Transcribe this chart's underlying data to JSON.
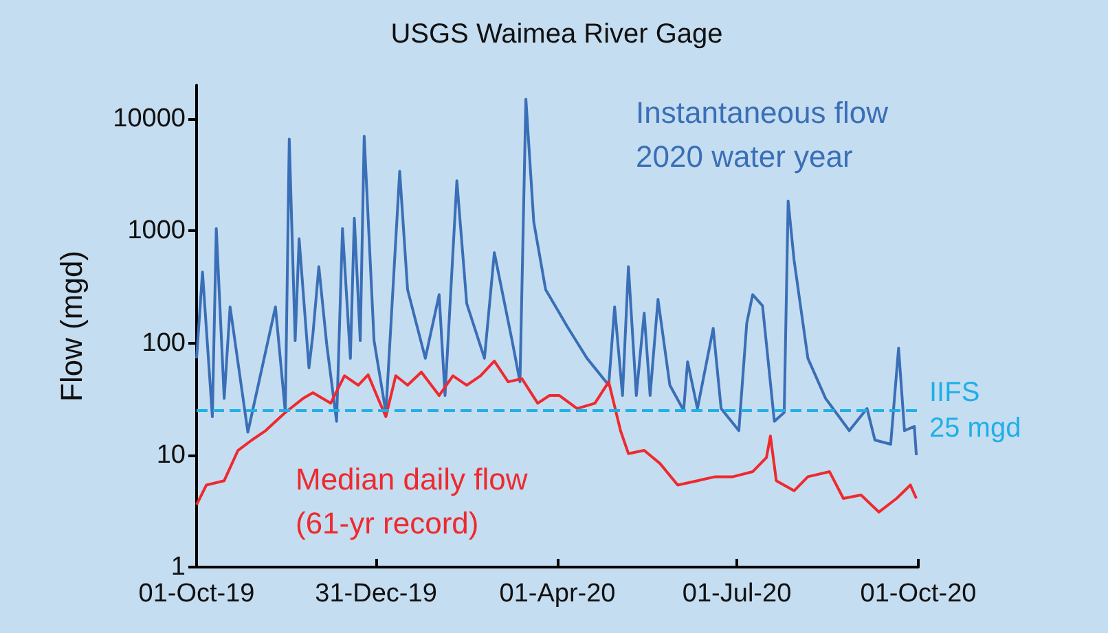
{
  "chart_data": {
    "type": "line",
    "title": "USGS Waimea River Gage",
    "ylabel": "Flow (mgd)",
    "log": "y",
    "grid": false,
    "legend": false,
    "marker": "none",
    "line_style": "solid",
    "xlim": [
      "2019-10-01",
      "2020-10-01"
    ],
    "xticks": [
      {
        "value": "2019-10-01",
        "label": "01-Oct-19"
      },
      {
        "value": "2019-12-31",
        "label": "31-Dec-19"
      },
      {
        "value": "2020-04-01",
        "label": "01-Apr-20"
      },
      {
        "value": "2020-07-01",
        "label": "01-Jul-20"
      },
      {
        "value": "2020-10-01",
        "label": "01-Oct-20"
      }
    ],
    "ylim": [
      1,
      20000
    ],
    "yticks": [
      1,
      10,
      100,
      1000,
      10000
    ],
    "series": [
      {
        "name": "Instantaneous flow\n2020 water year",
        "color": "#3a6fb7",
        "x": [
          "2019-10-01",
          "2019-10-04",
          "2019-10-09",
          "2019-10-11",
          "2019-10-15",
          "2019-10-18",
          "2019-10-27",
          "2019-11-10",
          "2019-11-15",
          "2019-11-17",
          "2019-11-20",
          "2019-11-22",
          "2019-11-27",
          "2019-11-29",
          "2019-12-02",
          "2019-12-06",
          "2019-12-11",
          "2019-12-14",
          "2019-12-18",
          "2019-12-20",
          "2019-12-23",
          "2019-12-25",
          "2019-12-30",
          "2020-01-05",
          "2020-01-12",
          "2020-01-16",
          "2020-01-25",
          "2020-02-01",
          "2020-02-04",
          "2020-02-10",
          "2020-02-15",
          "2020-02-24",
          "2020-02-29",
          "2020-03-09",
          "2020-03-13",
          "2020-03-16",
          "2020-03-20",
          "2020-03-26",
          "2020-04-02",
          "2020-04-06",
          "2020-04-16",
          "2020-04-27",
          "2020-04-30",
          "2020-05-04",
          "2020-05-07",
          "2020-05-11",
          "2020-05-15",
          "2020-05-18",
          "2020-05-22",
          "2020-05-28",
          "2020-06-04",
          "2020-06-06",
          "2020-06-11",
          "2020-06-19",
          "2020-06-23",
          "2020-07-02",
          "2020-07-06",
          "2020-07-09",
          "2020-07-14",
          "2020-07-20",
          "2020-07-25",
          "2020-07-27",
          "2020-07-30",
          "2020-08-06",
          "2020-08-15",
          "2020-08-27",
          "2020-09-05",
          "2020-09-09",
          "2020-09-17",
          "2020-09-21",
          "2020-09-24",
          "2020-09-29",
          "2020-09-30"
        ],
        "values": [
          73,
          430,
          22,
          1050,
          32,
          210,
          16,
          210,
          24,
          6600,
          105,
          850,
          60,
          120,
          480,
          97,
          20,
          1050,
          73,
          1300,
          105,
          7000,
          105,
          24,
          3400,
          300,
          73,
          270,
          34,
          2800,
          225,
          73,
          640,
          105,
          45,
          15000,
          1200,
          300,
          185,
          140,
          73,
          42,
          210,
          34,
          480,
          34,
          185,
          34,
          245,
          42,
          25,
          68,
          26,
          135,
          26,
          16.5,
          150,
          270,
          215,
          20,
          24,
          1850,
          550,
          73,
          32,
          16.5,
          26,
          13.6,
          12.5,
          90,
          16.5,
          18,
          10
        ]
      },
      {
        "name": "Median daily flow\n(61-yr record)",
        "color": "#ee2a2f",
        "x": [
          "2019-10-01",
          "2019-10-06",
          "2019-10-15",
          "2019-10-22",
          "2019-10-29",
          "2019-11-05",
          "2019-11-15",
          "2019-11-24",
          "2019-11-29",
          "2019-12-08",
          "2019-12-15",
          "2019-12-22",
          "2019-12-27",
          "2020-01-01",
          "2020-01-05",
          "2020-01-10",
          "2020-01-16",
          "2020-01-23",
          "2020-02-01",
          "2020-02-08",
          "2020-02-15",
          "2020-02-22",
          "2020-02-29",
          "2020-03-07",
          "2020-03-14",
          "2020-03-22",
          "2020-03-28",
          "2020-04-02",
          "2020-04-11",
          "2020-04-20",
          "2020-04-27",
          "2020-05-03",
          "2020-05-07",
          "2020-05-15",
          "2020-05-23",
          "2020-06-01",
          "2020-06-11",
          "2020-06-20",
          "2020-06-29",
          "2020-07-09",
          "2020-07-16",
          "2020-07-18",
          "2020-07-21",
          "2020-07-30",
          "2020-08-06",
          "2020-08-17",
          "2020-08-24",
          "2020-09-02",
          "2020-09-11",
          "2020-09-20",
          "2020-09-27",
          "2020-09-30"
        ],
        "values": [
          3.6,
          5.4,
          5.9,
          11,
          13.6,
          16.5,
          24,
          32,
          36,
          29,
          51,
          42,
          52,
          32,
          22,
          51,
          42,
          55,
          34,
          51,
          42,
          51,
          69,
          45,
          48,
          29,
          34,
          34,
          26,
          29,
          45,
          16.5,
          10.3,
          11,
          8.4,
          5.4,
          5.9,
          6.4,
          6.4,
          7.1,
          9.5,
          14.8,
          5.9,
          4.8,
          6.4,
          7.1,
          4.1,
          4.4,
          3.1,
          4.1,
          5.4,
          4.1
        ]
      }
    ],
    "ref_lines": [
      {
        "axis": "y",
        "value": 25,
        "label": "IIFS\n25 mgd",
        "color": "#1eb0e6",
        "line_style": "dashed"
      }
    ]
  }
}
